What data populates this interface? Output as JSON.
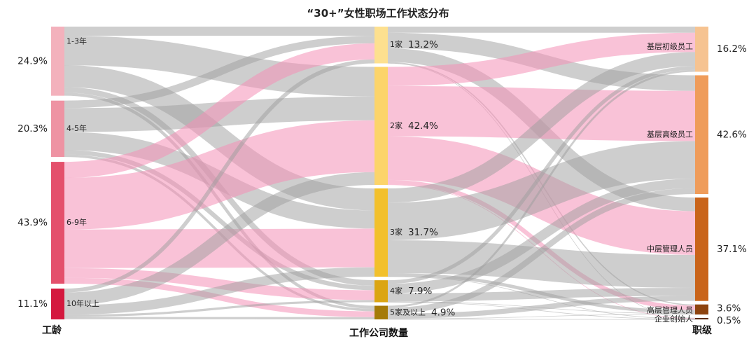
{
  "title": "“30+”女性职场工作状态分布",
  "columns": {
    "left": {
      "title": "工龄",
      "nodes": [
        {
          "id": "l1",
          "label": "1-3年",
          "pct": "24.9%",
          "value": 24.9,
          "color": "#f3b1bc"
        },
        {
          "id": "l2",
          "label": "4-5年",
          "pct": "20.3%",
          "value": 20.3,
          "color": "#ee93a3"
        },
        {
          "id": "l3",
          "label": "6-9年",
          "pct": "43.9%",
          "value": 43.9,
          "color": "#e4506c"
        },
        {
          "id": "l4",
          "label": "10年以上",
          "pct": "11.1%",
          "value": 11.1,
          "color": "#d4183e"
        }
      ]
    },
    "middle": {
      "title": "工作公司数量",
      "nodes": [
        {
          "id": "m1",
          "label": "1家",
          "pct": "13.2%",
          "value": 13.2,
          "color": "#fde08f"
        },
        {
          "id": "m2",
          "label": "2家",
          "pct": "42.4%",
          "value": 42.4,
          "color": "#fcd46a"
        },
        {
          "id": "m3",
          "label": "3家",
          "pct": "31.7%",
          "value": 31.7,
          "color": "#f2c02c"
        },
        {
          "id": "m4",
          "label": "4家",
          "pct": "7.9%",
          "value": 7.9,
          "color": "#dba512"
        },
        {
          "id": "m5",
          "label": "5家及以上",
          "pct": "4.9%",
          "value": 4.9,
          "color": "#a57a08"
        }
      ]
    },
    "right": {
      "title": "职级",
      "nodes": [
        {
          "id": "r1",
          "label": "基层初级员工",
          "pct": "16.2%",
          "value": 16.2,
          "color": "#f6c391"
        },
        {
          "id": "r2",
          "label": "基层高级员工",
          "pct": "42.6%",
          "value": 42.6,
          "color": "#ef9c5a"
        },
        {
          "id": "r3",
          "label": "中层管理人员",
          "pct": "37.1%",
          "value": 37.1,
          "color": "#c9641a"
        },
        {
          "id": "r4",
          "label": "高层管理人员",
          "pct": "3.6%",
          "value": 3.6,
          "color": "#8e440f"
        },
        {
          "id": "r5",
          "label": "企业创始人",
          "pct": "0.5%",
          "value": 0.5,
          "color": "#5a2a08"
        }
      ]
    }
  },
  "links_left": [
    {
      "source": "l1",
      "target": "m1",
      "value": 3.3,
      "style": "gray"
    },
    {
      "source": "l1",
      "target": "m2",
      "value": 10.6,
      "style": "gray"
    },
    {
      "source": "l1",
      "target": "m3",
      "value": 7.9,
      "style": "gray"
    },
    {
      "source": "l1",
      "target": "m4",
      "value": 2.0,
      "style": "gray"
    },
    {
      "source": "l1",
      "target": "m5",
      "value": 1.1,
      "style": "gray"
    },
    {
      "source": "l2",
      "target": "m1",
      "value": 2.7,
      "style": "gray"
    },
    {
      "source": "l2",
      "target": "m2",
      "value": 8.6,
      "style": "gray"
    },
    {
      "source": "l2",
      "target": "m3",
      "value": 6.5,
      "style": "gray"
    },
    {
      "source": "l2",
      "target": "m4",
      "value": 1.6,
      "style": "gray"
    },
    {
      "source": "l2",
      "target": "m5",
      "value": 0.9,
      "style": "gray"
    },
    {
      "source": "l3",
      "target": "m1",
      "value": 5.8,
      "style": "pink"
    },
    {
      "source": "l3",
      "target": "m2",
      "value": 18.6,
      "style": "pink"
    },
    {
      "source": "l3",
      "target": "m3",
      "value": 13.9,
      "style": "pink"
    },
    {
      "source": "l3",
      "target": "m4",
      "value": 3.5,
      "style": "pink"
    },
    {
      "source": "l3",
      "target": "m5",
      "value": 2.1,
      "style": "pink"
    },
    {
      "source": "l4",
      "target": "m1",
      "value": 1.4,
      "style": "gray"
    },
    {
      "source": "l4",
      "target": "m2",
      "value": 4.6,
      "style": "gray"
    },
    {
      "source": "l4",
      "target": "m3",
      "value": 3.4,
      "style": "gray"
    },
    {
      "source": "l4",
      "target": "m4",
      "value": 0.8,
      "style": "gray"
    },
    {
      "source": "l4",
      "target": "m5",
      "value": 0.8,
      "style": "gray"
    }
  ],
  "links_right": [
    {
      "source": "m1",
      "target": "r1",
      "value": 2.2,
      "style": "gray"
    },
    {
      "source": "m1",
      "target": "r2",
      "value": 5.6,
      "style": "gray"
    },
    {
      "source": "m1",
      "target": "r3",
      "value": 4.9,
      "style": "gray"
    },
    {
      "source": "m1",
      "target": "r4",
      "value": 0.4,
      "style": "gray"
    },
    {
      "source": "m1",
      "target": "r5",
      "value": 0.1,
      "style": "gray"
    },
    {
      "source": "m2",
      "target": "r1",
      "value": 6.9,
      "style": "pink"
    },
    {
      "source": "m2",
      "target": "r2",
      "value": 18.0,
      "style": "pink"
    },
    {
      "source": "m2",
      "target": "r3",
      "value": 15.7,
      "style": "pink"
    },
    {
      "source": "m2",
      "target": "r4",
      "value": 1.6,
      "style": "pink"
    },
    {
      "source": "m2",
      "target": "r5",
      "value": 0.2,
      "style": "pink"
    },
    {
      "source": "m3",
      "target": "r1",
      "value": 5.1,
      "style": "gray"
    },
    {
      "source": "m3",
      "target": "r2",
      "value": 13.5,
      "style": "gray"
    },
    {
      "source": "m3",
      "target": "r3",
      "value": 11.8,
      "style": "gray"
    },
    {
      "source": "m3",
      "target": "r4",
      "value": 1.2,
      "style": "gray"
    },
    {
      "source": "m3",
      "target": "r5",
      "value": 0.1,
      "style": "gray"
    },
    {
      "source": "m4",
      "target": "r1",
      "value": 1.3,
      "style": "gray"
    },
    {
      "source": "m4",
      "target": "r2",
      "value": 3.4,
      "style": "gray"
    },
    {
      "source": "m4",
      "target": "r3",
      "value": 2.9,
      "style": "gray"
    },
    {
      "source": "m4",
      "target": "r4",
      "value": 0.2,
      "style": "gray"
    },
    {
      "source": "m4",
      "target": "r5",
      "value": 0.1,
      "style": "gray"
    },
    {
      "source": "m5",
      "target": "r1",
      "value": 0.7,
      "style": "gray"
    },
    {
      "source": "m5",
      "target": "r2",
      "value": 2.1,
      "style": "gray"
    },
    {
      "source": "m5",
      "target": "r3",
      "value": 1.8,
      "style": "gray"
    },
    {
      "source": "m5",
      "target": "r4",
      "value": 0.2,
      "style": "gray"
    },
    {
      "source": "m5",
      "target": "r5",
      "value": 0.1,
      "style": "gray"
    }
  ],
  "link_colors": {
    "gray": "#9e9e9e",
    "pink": "#f48fb6"
  }
}
